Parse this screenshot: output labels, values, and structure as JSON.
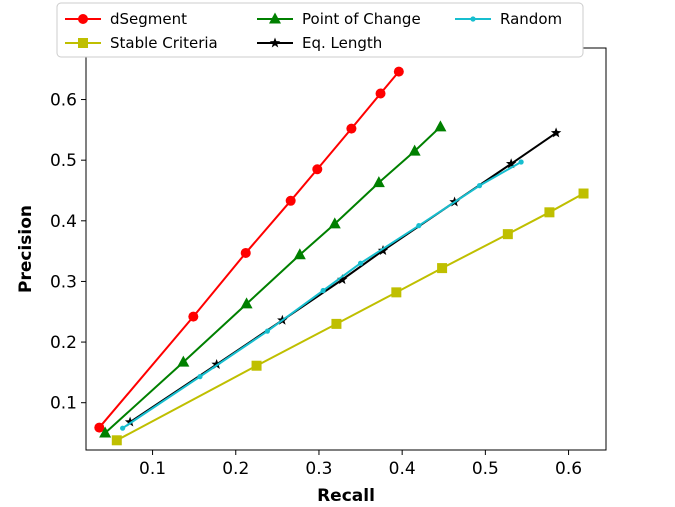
{
  "chart_data": {
    "type": "line",
    "title": "",
    "xlabel": "Recall",
    "ylabel": "Precision",
    "xlim": [
      0.02,
      0.645
    ],
    "ylim": [
      0.022,
      0.685
    ],
    "xticks": [
      "0.1",
      "0.2",
      "0.3",
      "0.4",
      "0.5",
      "0.6"
    ],
    "yticks": [
      "0.1",
      "0.2",
      "0.3",
      "0.4",
      "0.5",
      "0.6"
    ],
    "grid": false,
    "legend_position": "top-center",
    "series": [
      {
        "name": "dSegment",
        "color": "#ff0000",
        "marker": "circle",
        "x": [
          0.036,
          0.149,
          0.212,
          0.266,
          0.298,
          0.339,
          0.374,
          0.396
        ],
        "y": [
          0.059,
          0.242,
          0.347,
          0.433,
          0.485,
          0.552,
          0.61,
          0.646
        ]
      },
      {
        "name": "Stable Criteria",
        "color": "#bfbf00",
        "marker": "square",
        "x": [
          0.057,
          0.225,
          0.321,
          0.393,
          0.448,
          0.527,
          0.577,
          0.618
        ],
        "y": [
          0.038,
          0.161,
          0.23,
          0.282,
          0.322,
          0.378,
          0.414,
          0.445
        ]
      },
      {
        "name": "Point of Change",
        "color": "#008000",
        "marker": "triangle",
        "x": [
          0.043,
          0.137,
          0.213,
          0.277,
          0.319,
          0.372,
          0.415,
          0.446
        ],
        "y": [
          0.05,
          0.167,
          0.263,
          0.344,
          0.395,
          0.463,
          0.515,
          0.555
        ]
      },
      {
        "name": "Eq. Length",
        "color": "#000000",
        "marker": "star",
        "x": [
          0.073,
          0.177,
          0.256,
          0.328,
          0.377,
          0.463,
          0.531,
          0.585
        ],
        "y": [
          0.068,
          0.163,
          0.236,
          0.303,
          0.351,
          0.431,
          0.494,
          0.545
        ]
      },
      {
        "name": "Random",
        "color": "#17becf",
        "marker": "dot",
        "x": [
          0.064,
          0.157,
          0.238,
          0.305,
          0.35,
          0.42,
          0.493,
          0.543
        ],
        "y": [
          0.058,
          0.143,
          0.218,
          0.285,
          0.33,
          0.392,
          0.458,
          0.497
        ]
      }
    ]
  }
}
